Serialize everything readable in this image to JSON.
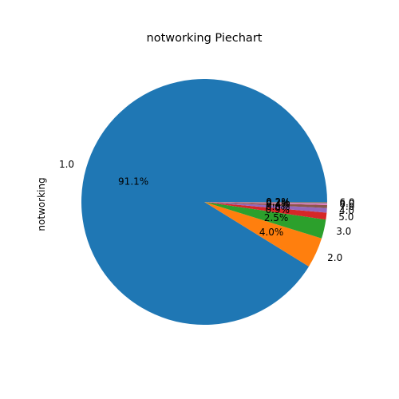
{
  "chart_data": {
    "type": "pie",
    "title": "notworking Piechart",
    "ylabel": "notworking",
    "slices": [
      {
        "label": "1.0",
        "value": 91.1,
        "pct_label": "91.1%",
        "color": "#1f77b4"
      },
      {
        "label": "2.0",
        "value": 4.0,
        "pct_label": "4.0%",
        "color": "#ff7f0e"
      },
      {
        "label": "3.0",
        "value": 2.5,
        "pct_label": "2.5%",
        "color": "#2ca02c"
      },
      {
        "label": "5.0",
        "value": 0.9,
        "pct_label": "0.9%",
        "color": "#d62728"
      },
      {
        "label": "4.0",
        "value": 0.6,
        "pct_label": "0.6%",
        "color": "#9467bd"
      },
      {
        "label": "7.0",
        "value": 0.4,
        "pct_label": "0.4%",
        "color": "#8c564b"
      },
      {
        "label": "8.0",
        "value": 0.2,
        "pct_label": "0.2%",
        "color": "#e377c2"
      },
      {
        "label": "6.0",
        "value": 0.2,
        "pct_label": "0.2%",
        "color": "#7f7f7f"
      }
    ]
  }
}
